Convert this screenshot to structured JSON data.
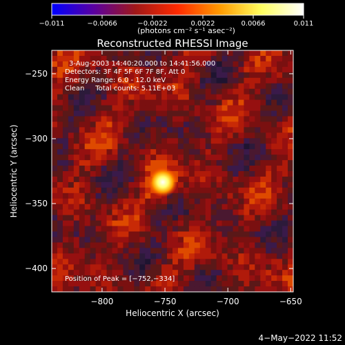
{
  "chart_data": {
    "type": "heatmap",
    "title": "Reconstructed RHESSI Image",
    "xlabel": "Heliocentric X (arcsec)",
    "ylabel": "Heliocentric Y (arcsec)",
    "xlim": [
      -840,
      -648
    ],
    "ylim": [
      -418,
      -232
    ],
    "x_ticks": [
      -800,
      -750,
      -700,
      -650
    ],
    "y_ticks": [
      -250,
      -300,
      -350,
      -400
    ],
    "x_tick_labels": [
      "−800",
      "−750",
      "−700",
      "−650"
    ],
    "y_tick_labels": [
      "−250",
      "−300",
      "−350",
      "−400"
    ],
    "colorbar": {
      "range": [
        -0.011,
        0.011
      ],
      "ticks": [
        -0.011,
        -0.0066,
        -0.0022,
        0.0022,
        0.0066,
        0.011
      ],
      "tick_labels": [
        "−0.011",
        "−0.0066",
        "−0.0022",
        "0.0022",
        "0.0066",
        "0.011"
      ],
      "label": "(photons cm⁻² s⁻¹ asec⁻²)",
      "colors": [
        "#0000ff",
        "#5a00a0",
        "#a01818",
        "#ff2a00",
        "#ff9a00",
        "#ffff60",
        "#ffffff"
      ]
    },
    "annotations": [
      "3-Aug-2003 14:40:20.000 to 14:41:56.000",
      "Detectors: 3F 4F 5F 6F 7F 8F, Att 0",
      "Energy Range: 6.0 - 12.0 keV",
      "Clean     Total counts: 5.11E+03"
    ],
    "peak_label": "Position of Peak = [−752,−334]",
    "peak": {
      "x": -752,
      "y": -334,
      "value": 0.011
    }
  },
  "footer": {
    "timestamp": "4−May−2022 11:52"
  }
}
